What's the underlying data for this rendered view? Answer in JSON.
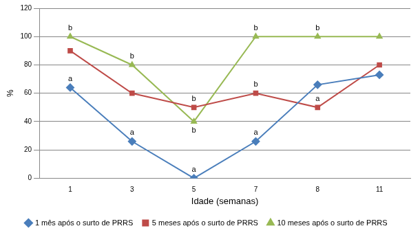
{
  "chart_data": {
    "type": "line",
    "x_label": "Idade (semanas)",
    "y_label": "%",
    "categories": [
      "1",
      "3",
      "5",
      "7",
      "8",
      "11"
    ],
    "ylim": [
      0,
      120
    ],
    "yticks": [
      0,
      20,
      40,
      60,
      80,
      100,
      120
    ],
    "grid": true,
    "legend": "bottom",
    "series": [
      {
        "name": "1 mês após o surto de PRRS",
        "color": "#4a7ebb",
        "marker": "diamond",
        "values": [
          64,
          26,
          0,
          26,
          66,
          73
        ],
        "point_labels": [
          "a",
          "a",
          "a",
          "a",
          null,
          null
        ]
      },
      {
        "name": "5 meses após o surto de PRRS",
        "color": "#be4b48",
        "marker": "square",
        "values": [
          90,
          60,
          50,
          60,
          50,
          80
        ],
        "point_labels": [
          null,
          null,
          "b",
          "b",
          "a",
          null
        ]
      },
      {
        "name": "10 meses após o surto de PRRS",
        "color": "#98b954",
        "marker": "triangle",
        "values": [
          100,
          80,
          40,
          100,
          100,
          100
        ],
        "point_labels": [
          "b",
          "b",
          "b",
          "b",
          "b",
          null
        ]
      }
    ]
  }
}
